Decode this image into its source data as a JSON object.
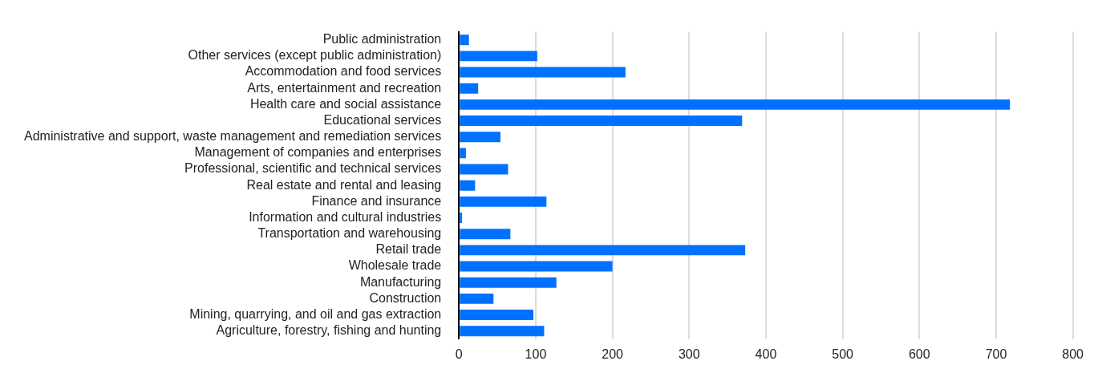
{
  "chart_data": {
    "type": "bar",
    "orientation": "horizontal",
    "categories": [
      "Public administration",
      "Other services (except public administration)",
      "Accommodation and food services",
      "Arts, entertainment and recreation",
      "Health care and social assistance",
      "Educational services",
      "Administrative and support, waste management and remediation services",
      "Management of companies and enterprises",
      "Professional, scientific and technical services",
      "Real estate and rental and leasing",
      "Finance and insurance",
      "Information and cultural industries",
      "Transportation and warehousing",
      "Retail trade",
      "Wholesale trade",
      "Manufacturing",
      "Construction",
      "Mining, quarrying, and oil and gas extraction",
      "Agriculture, forestry, fishing and hunting"
    ],
    "values": [
      13,
      102,
      217,
      25,
      718,
      369,
      54,
      9,
      64,
      21,
      114,
      4,
      67,
      373,
      200,
      127,
      45,
      97,
      111
    ],
    "color": "#0070ff",
    "xlim": [
      0,
      800
    ],
    "xticks": [
      0,
      100,
      200,
      300,
      400,
      500,
      600,
      700,
      800
    ],
    "grid": "x",
    "legend": false
  }
}
